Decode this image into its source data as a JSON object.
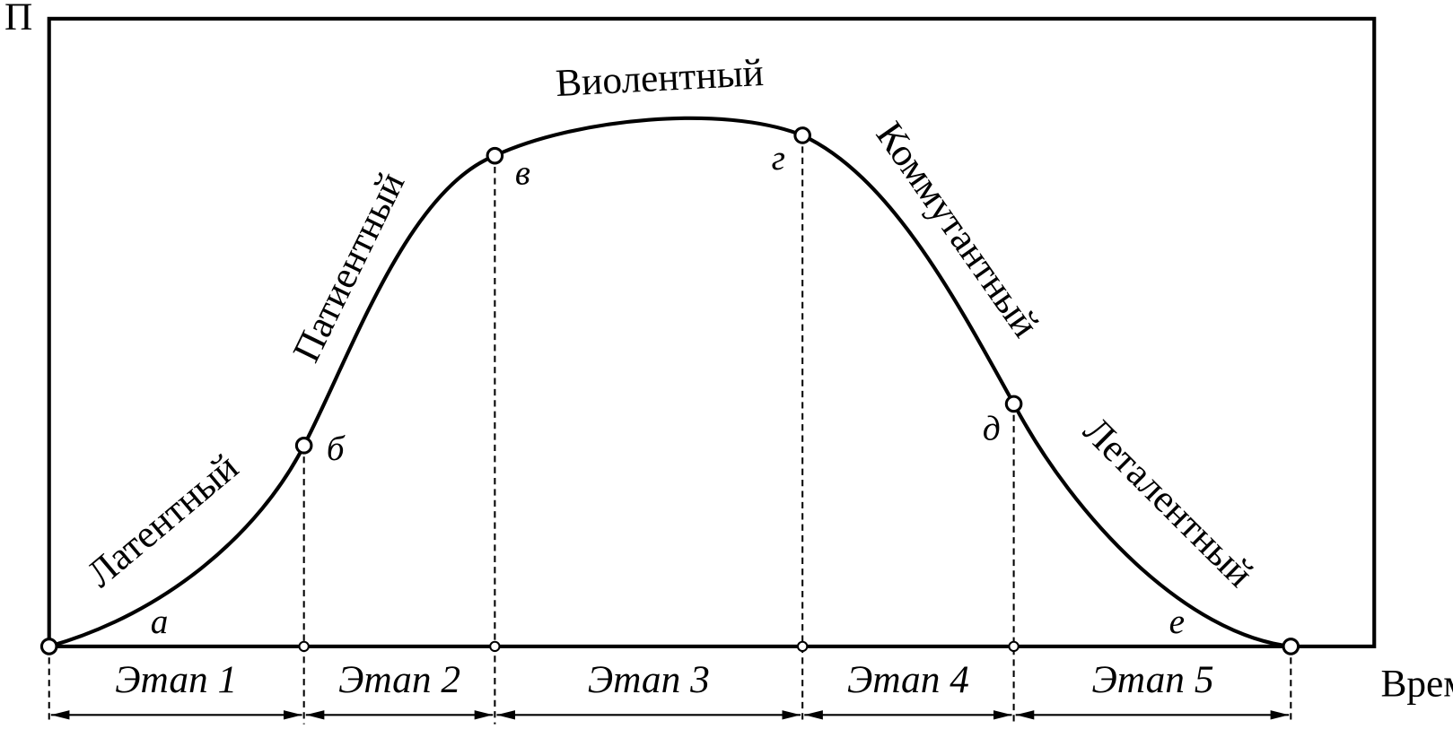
{
  "axes": {
    "y_label": "П",
    "x_label": "Время"
  },
  "phases": [
    "Латентный",
    "Патиентный",
    "Виолентный",
    "Коммутантный",
    "Леталентный"
  ],
  "points": [
    "а",
    "б",
    "в",
    "г",
    "д",
    "е"
  ],
  "stages": [
    "Этап 1",
    "Этап 2",
    "Этап 3",
    "Этап 4",
    "Этап 5"
  ]
}
